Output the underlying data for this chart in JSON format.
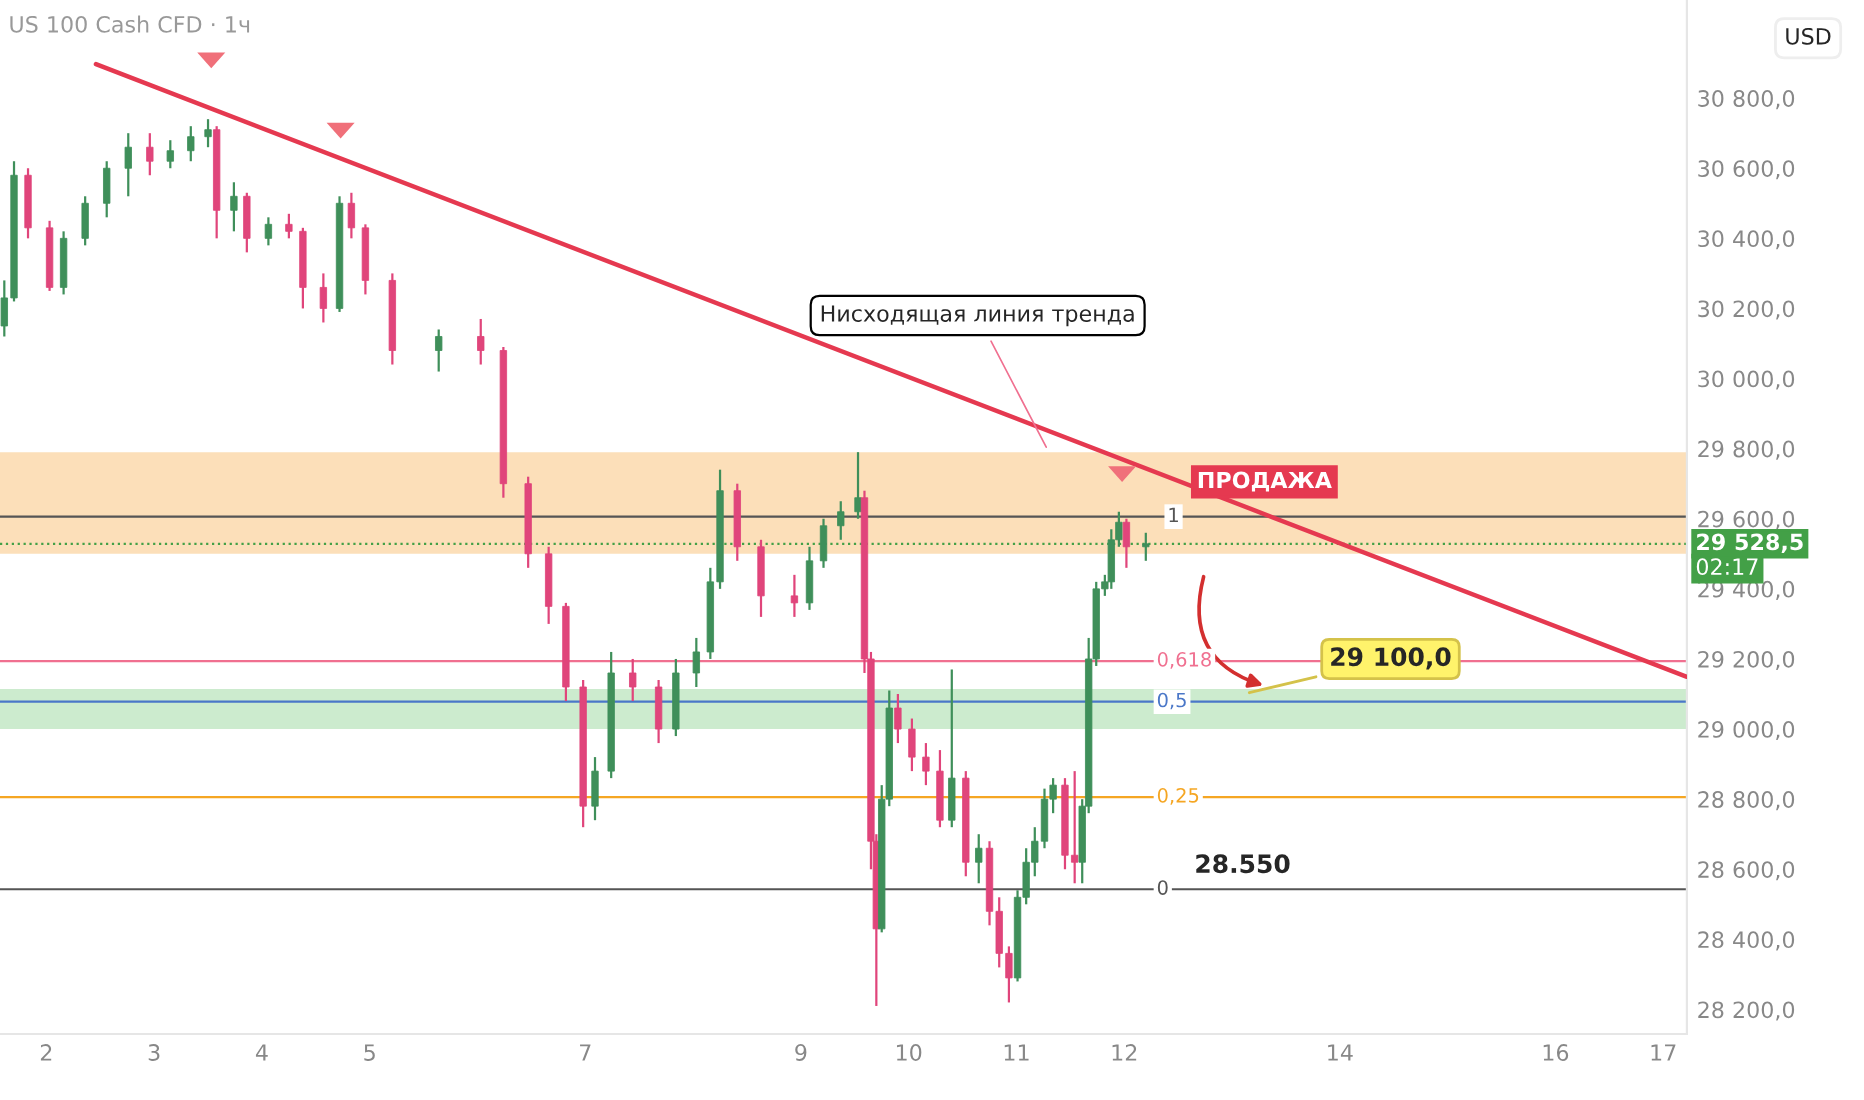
{
  "chart_data": {
    "type": "candlestick",
    "title": "US 100 Cash CFD · 1ч",
    "x": [
      1.61,
      1.7,
      1.83,
      2.03,
      2.16,
      2.36,
      2.56,
      2.76,
      2.96,
      3.15,
      3.34,
      3.5,
      3.58,
      3.74,
      3.86,
      4.06,
      4.25,
      4.38,
      4.57,
      4.72,
      4.83,
      4.96,
      5.21,
      5.64,
      6.03,
      6.24,
      6.47,
      6.66,
      6.82,
      6.98,
      7.09,
      7.24,
      7.44,
      7.68,
      7.84,
      8.03,
      8.16,
      8.25,
      8.41,
      8.63,
      8.94,
      9.08,
      9.21,
      9.37,
      9.53,
      9.59,
      9.65,
      9.7,
      9.75,
      9.82,
      9.9,
      10.03,
      10.16,
      10.29,
      10.4,
      10.53,
      10.65,
      10.75,
      10.84,
      10.93,
      11.01,
      11.09,
      11.17,
      11.26,
      11.34,
      11.45,
      11.54,
      11.61,
      11.67,
      11.74,
      11.82,
      11.88,
      11.95,
      12.02,
      12.2
    ],
    "ohlc": [
      [
        30150,
        30280,
        30120,
        30230
      ],
      [
        30230,
        30620,
        30220,
        30580
      ],
      [
        30580,
        30600,
        30400,
        30430
      ],
      [
        30430,
        30450,
        30250,
        30260
      ],
      [
        30260,
        30420,
        30240,
        30400
      ],
      [
        30400,
        30520,
        30380,
        30500
      ],
      [
        30500,
        30620,
        30460,
        30600
      ],
      [
        30600,
        30700,
        30520,
        30660
      ],
      [
        30660,
        30700,
        30580,
        30620
      ],
      [
        30620,
        30680,
        30600,
        30650
      ],
      [
        30650,
        30720,
        30620,
        30690
      ],
      [
        30690,
        30740,
        30660,
        30710
      ],
      [
        30710,
        30720,
        30400,
        30480
      ],
      [
        30480,
        30560,
        30420,
        30520
      ],
      [
        30520,
        30530,
        30360,
        30400
      ],
      [
        30400,
        30460,
        30380,
        30440
      ],
      [
        30440,
        30470,
        30400,
        30420
      ],
      [
        30420,
        30430,
        30200,
        30260
      ],
      [
        30260,
        30300,
        30160,
        30200
      ],
      [
        30200,
        30520,
        30190,
        30500
      ],
      [
        30500,
        30530,
        30400,
        30430
      ],
      [
        30430,
        30440,
        30240,
        30280
      ],
      [
        30280,
        30300,
        30040,
        30080
      ],
      [
        30080,
        30140,
        30020,
        30120
      ],
      [
        30120,
        30170,
        30040,
        30080
      ],
      [
        30080,
        30090,
        29660,
        29700
      ],
      [
        29700,
        29720,
        29460,
        29500
      ],
      [
        29500,
        29520,
        29300,
        29350
      ],
      [
        29350,
        29360,
        29080,
        29120
      ],
      [
        29120,
        29140,
        28720,
        28780
      ],
      [
        28780,
        28920,
        28740,
        28880
      ],
      [
        28880,
        29220,
        28860,
        29160
      ],
      [
        29160,
        29200,
        29080,
        29120
      ],
      [
        29120,
        29140,
        28960,
        29000
      ],
      [
        29000,
        29200,
        28980,
        29160
      ],
      [
        29160,
        29260,
        29120,
        29220
      ],
      [
        29220,
        29460,
        29200,
        29420
      ],
      [
        29420,
        29740,
        29400,
        29680
      ],
      [
        29680,
        29700,
        29480,
        29520
      ],
      [
        29520,
        29540,
        29320,
        29380
      ],
      [
        29380,
        29440,
        29320,
        29360
      ],
      [
        29360,
        29520,
        29340,
        29480
      ],
      [
        29480,
        29600,
        29460,
        29580
      ],
      [
        29580,
        29650,
        29540,
        29620
      ],
      [
        29620,
        29790,
        29600,
        29660
      ],
      [
        29660,
        29680,
        29160,
        29200
      ],
      [
        29200,
        29220,
        28600,
        28680
      ],
      [
        28680,
        28700,
        28210,
        28430
      ],
      [
        28430,
        28840,
        28420,
        28800
      ],
      [
        28800,
        29110,
        28780,
        29060
      ],
      [
        29060,
        29100,
        28960,
        29000
      ],
      [
        29000,
        29030,
        28880,
        28920
      ],
      [
        28920,
        28960,
        28840,
        28880
      ],
      [
        28880,
        28940,
        28720,
        28740
      ],
      [
        28740,
        29170,
        28720,
        28860
      ],
      [
        28860,
        28880,
        28580,
        28620
      ],
      [
        28620,
        28700,
        28560,
        28660
      ],
      [
        28660,
        28680,
        28440,
        28480
      ],
      [
        28480,
        28520,
        28320,
        28360
      ],
      [
        28360,
        28380,
        28220,
        28290
      ],
      [
        28290,
        28540,
        28280,
        28520
      ],
      [
        28520,
        28660,
        28500,
        28620
      ],
      [
        28620,
        28720,
        28580,
        28680
      ],
      [
        28680,
        28830,
        28660,
        28800
      ],
      [
        28800,
        28860,
        28760,
        28840
      ],
      [
        28840,
        28860,
        28600,
        28640
      ],
      [
        28640,
        28880,
        28560,
        28620
      ],
      [
        28620,
        28800,
        28560,
        28780
      ],
      [
        28780,
        29260,
        28760,
        29200
      ],
      [
        29200,
        29420,
        29180,
        29400
      ],
      [
        29400,
        29440,
        29380,
        29420
      ],
      [
        29420,
        29570,
        29400,
        29540
      ],
      [
        29540,
        29620,
        29520,
        29590
      ],
      [
        29590,
        29600,
        29460,
        29520
      ],
      [
        29520,
        29560,
        29480,
        29528.5
      ]
    ],
    "series": [
      {
        "type": "line",
        "color": "#e53950",
        "x": [
          2.46,
          17.22
        ],
        "values": [
          30897,
          29149
        ]
      }
    ],
    "bands": [
      {
        "axis": "y",
        "from": 29500,
        "to": 29790,
        "color": "#fbd7a8"
      },
      {
        "axis": "y",
        "from": 29000,
        "to": 29114,
        "color": "#bfe6c2"
      }
    ],
    "ref_lines": [
      {
        "axis": "y",
        "value": 29606,
        "color": "#555555"
      },
      {
        "axis": "y",
        "value": 29194,
        "color": "#f07090"
      },
      {
        "axis": "y",
        "value": 29078,
        "color": "#4a77c8"
      },
      {
        "axis": "y",
        "value": 28806,
        "color": "#f5a623"
      },
      {
        "axis": "y",
        "value": 28543,
        "color": "#555555"
      },
      {
        "axis": "y",
        "value": 29528.5,
        "label": "29 528,5",
        "color": "#43a047",
        "line_style": "dotted"
      }
    ],
    "annotations": [
      {
        "text": "Нисходящая линия тренда",
        "x": 11.3,
        "y": 29790
      },
      "ПРОДАЖА",
      {
        "text": "29 100,0",
        "x": 13.11,
        "y": 29100
      },
      {
        "text": "28.550",
        "x": 12.5,
        "y": 28550
      },
      "USD",
      "02:17",
      {
        "text": "1",
        "x": 12.4,
        "y": 29606
      },
      {
        "text": "0,618",
        "x": 12.3,
        "y": 29194
      },
      {
        "text": "0,5",
        "x": 12.3,
        "y": 29078
      },
      {
        "text": "0,25",
        "x": 12.3,
        "y": 28806
      },
      {
        "text": "0",
        "x": 12.3,
        "y": 28543
      }
    ],
    "xlim": [
      1.57,
      17.22
    ],
    "ylim": [
      28130,
      31080
    ],
    "xticks": [
      2,
      3,
      4,
      5,
      7,
      9,
      10,
      11,
      12,
      14,
      16,
      17
    ],
    "yticks": [
      {
        "value": 28200,
        "label": "28 200,0"
      },
      {
        "value": 28400,
        "label": "28 400,0"
      },
      {
        "value": 28600,
        "label": "28 600,0"
      },
      {
        "value": 28800,
        "label": "28 800,0"
      },
      {
        "value": 29000,
        "label": "29 000,0"
      },
      {
        "value": 29200,
        "label": "29 200,0"
      },
      {
        "value": 29400,
        "label": "29 400,0"
      },
      {
        "value": 29600,
        "label": "29 600,0"
      },
      {
        "value": 29800,
        "label": "29 800,0"
      },
      {
        "value": 30000,
        "label": "30 000,0"
      },
      {
        "value": 30200,
        "label": "30 200,0"
      },
      {
        "value": 30400,
        "label": "30 400,0"
      },
      {
        "value": 30600,
        "label": "30 600,0"
      },
      {
        "value": 30800,
        "label": "30 800,0"
      }
    ],
    "grid": false,
    "legend": false
  }
}
